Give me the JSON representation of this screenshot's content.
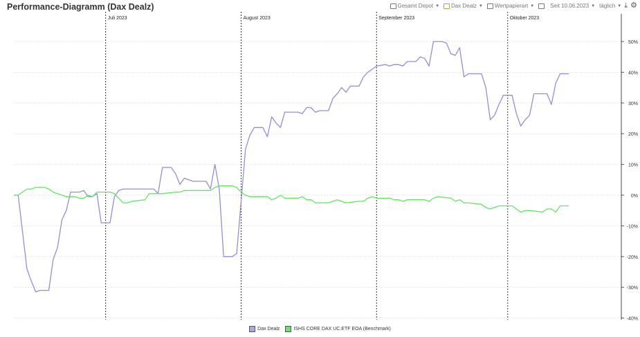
{
  "page": {
    "title": "Performance-Diagramm (Dax Dealz)"
  },
  "toolbar": {
    "depot_label": "Gesamt Depot",
    "portfolio_label": "Dax Dealz",
    "security_type_label": "Wertpapierart",
    "since_label": "Seit 10.06.2023",
    "interval_label": "täglich",
    "icons": [
      "calendar-icon",
      "download-icon",
      "gear-icon"
    ],
    "accent_color": "#e0952a"
  },
  "chart_data": {
    "type": "line",
    "title": "Performance-Diagramm (Dax Dealz)",
    "xlabel": "",
    "ylabel": "",
    "x_range": [
      "2023-06-10",
      "2023-10-27"
    ],
    "ylim": [
      -40,
      58
    ],
    "y_ticks": [
      50,
      40,
      30,
      20,
      10,
      0,
      -10,
      -20,
      -30,
      -40
    ],
    "y_tick_labels": [
      "50%",
      "40%",
      "30%",
      "20%",
      "10%",
      "0%",
      "-10%",
      "-20%",
      "-30%",
      "-40%"
    ],
    "y_axis_side": "right",
    "grid": true,
    "month_markers": [
      {
        "date": "2023-07-01",
        "label": "Juli 2023"
      },
      {
        "date": "2023-08-01",
        "label": "August 2023"
      },
      {
        "date": "2023-09-01",
        "label": "September 2023"
      },
      {
        "date": "2023-10-01",
        "label": "Oktober 2023"
      }
    ],
    "legend_position": "bottom-center",
    "series": [
      {
        "name": "Dax Dealz",
        "color": "#8f8fd6",
        "legend_fill": "#a9a9dc",
        "points": [
          [
            "2023-06-10",
            0
          ],
          [
            "2023-06-11",
            0
          ],
          [
            "2023-06-12",
            -12
          ],
          [
            "2023-06-13",
            -24
          ],
          [
            "2023-06-14",
            -28
          ],
          [
            "2023-06-15",
            -31.5
          ],
          [
            "2023-06-16",
            -31
          ],
          [
            "2023-06-17",
            -31
          ],
          [
            "2023-06-18",
            -31
          ],
          [
            "2023-06-19",
            -21
          ],
          [
            "2023-06-20",
            -17
          ],
          [
            "2023-06-21",
            -8
          ],
          [
            "2023-06-22",
            -5
          ],
          [
            "2023-06-23",
            1
          ],
          [
            "2023-06-24",
            1
          ],
          [
            "2023-06-25",
            1
          ],
          [
            "2023-06-26",
            1.5
          ],
          [
            "2023-06-27",
            -0.5
          ],
          [
            "2023-06-28",
            -0.5
          ],
          [
            "2023-06-29",
            0.5
          ],
          [
            "2023-06-30",
            -9
          ],
          [
            "2023-07-01",
            -9
          ],
          [
            "2023-07-02",
            -9
          ],
          [
            "2023-07-03",
            -0.5
          ],
          [
            "2023-07-04",
            1.5
          ],
          [
            "2023-07-05",
            2
          ],
          [
            "2023-07-07",
            2
          ],
          [
            "2023-07-10",
            2
          ],
          [
            "2023-07-11",
            2
          ],
          [
            "2023-07-12",
            2
          ],
          [
            "2023-07-13",
            0.5
          ],
          [
            "2023-07-14",
            9
          ],
          [
            "2023-07-15",
            9
          ],
          [
            "2023-07-16",
            9
          ],
          [
            "2023-07-17",
            7
          ],
          [
            "2023-07-18",
            3.5
          ],
          [
            "2023-07-19",
            5.5
          ],
          [
            "2023-07-20",
            5
          ],
          [
            "2023-07-21",
            4.5
          ],
          [
            "2023-07-24",
            4.5
          ],
          [
            "2023-07-25",
            2
          ],
          [
            "2023-07-26",
            10
          ],
          [
            "2023-07-27",
            2
          ],
          [
            "2023-07-28",
            -20
          ],
          [
            "2023-07-29",
            -20
          ],
          [
            "2023-07-30",
            -20
          ],
          [
            "2023-07-31",
            -19
          ],
          [
            "2023-08-01",
            -2
          ],
          [
            "2023-08-02",
            15
          ],
          [
            "2023-08-03",
            19.5
          ],
          [
            "2023-08-04",
            22
          ],
          [
            "2023-08-05",
            22
          ],
          [
            "2023-08-06",
            22
          ],
          [
            "2023-08-07",
            19
          ],
          [
            "2023-08-08",
            25.5
          ],
          [
            "2023-08-09",
            23.5
          ],
          [
            "2023-08-10",
            22
          ],
          [
            "2023-08-11",
            27
          ],
          [
            "2023-08-14",
            27
          ],
          [
            "2023-08-15",
            26.5
          ],
          [
            "2023-08-16",
            28.5
          ],
          [
            "2023-08-17",
            28.5
          ],
          [
            "2023-08-18",
            27
          ],
          [
            "2023-08-19",
            27.5
          ],
          [
            "2023-08-21",
            27.5
          ],
          [
            "2023-08-22",
            31.5
          ],
          [
            "2023-08-23",
            33
          ],
          [
            "2023-08-24",
            35
          ],
          [
            "2023-08-25",
            33.5
          ],
          [
            "2023-08-26",
            35.5
          ],
          [
            "2023-08-28",
            35.5
          ],
          [
            "2023-08-29",
            38.5
          ],
          [
            "2023-08-30",
            40
          ],
          [
            "2023-08-31",
            41
          ],
          [
            "2023-09-01",
            42
          ],
          [
            "2023-09-03",
            42.5
          ],
          [
            "2023-09-04",
            42
          ],
          [
            "2023-09-05",
            42.5
          ],
          [
            "2023-09-06",
            42.5
          ],
          [
            "2023-09-07",
            42
          ],
          [
            "2023-09-08",
            43.5
          ],
          [
            "2023-09-10",
            43.5
          ],
          [
            "2023-09-11",
            45
          ],
          [
            "2023-09-12",
            44.5
          ],
          [
            "2023-09-13",
            42
          ],
          [
            "2023-09-14",
            50
          ],
          [
            "2023-09-15",
            50
          ],
          [
            "2023-09-16",
            50
          ],
          [
            "2023-09-17",
            49.5
          ],
          [
            "2023-09-18",
            46
          ],
          [
            "2023-09-19",
            45.5
          ],
          [
            "2023-09-20",
            48
          ],
          [
            "2023-09-21",
            38.5
          ],
          [
            "2023-09-22",
            39.5
          ],
          [
            "2023-09-24",
            39.5
          ],
          [
            "2023-09-25",
            39.5
          ],
          [
            "2023-09-26",
            35
          ],
          [
            "2023-09-27",
            24.5
          ],
          [
            "2023-09-28",
            26
          ],
          [
            "2023-09-29",
            29.5
          ],
          [
            "2023-09-30",
            32.5
          ],
          [
            "2023-10-02",
            32.5
          ],
          [
            "2023-10-03",
            26.5
          ],
          [
            "2023-10-04",
            22.5
          ],
          [
            "2023-10-05",
            24.5
          ],
          [
            "2023-10-06",
            26
          ],
          [
            "2023-10-07",
            33
          ],
          [
            "2023-10-10",
            33
          ],
          [
            "2023-10-11",
            29.5
          ],
          [
            "2023-10-12",
            36.5
          ],
          [
            "2023-10-13",
            39.5
          ],
          [
            "2023-10-14",
            39.5
          ],
          [
            "2023-10-15",
            39.5
          ]
        ]
      },
      {
        "name": "ISHS CORE DAX UC.ETF EOA (Benchmark)",
        "color": "#5ee65e",
        "legend_fill": "#6ee06e",
        "points": [
          [
            "2023-06-10",
            0
          ],
          [
            "2023-06-11",
            0
          ],
          [
            "2023-06-12",
            1
          ],
          [
            "2023-06-13",
            2
          ],
          [
            "2023-06-14",
            2
          ],
          [
            "2023-06-15",
            2.5
          ],
          [
            "2023-06-16",
            2.5
          ],
          [
            "2023-06-17",
            2.5
          ],
          [
            "2023-06-18",
            2
          ],
          [
            "2023-06-19",
            1
          ],
          [
            "2023-06-20",
            0.5
          ],
          [
            "2023-06-21",
            0
          ],
          [
            "2023-06-22",
            -0.5
          ],
          [
            "2023-06-23",
            -0.5
          ],
          [
            "2023-06-24",
            -0.5
          ],
          [
            "2023-06-25",
            -1
          ],
          [
            "2023-06-26",
            -1
          ],
          [
            "2023-06-27",
            0
          ],
          [
            "2023-06-28",
            -0.5
          ],
          [
            "2023-06-29",
            1
          ],
          [
            "2023-06-30",
            1
          ],
          [
            "2023-07-01",
            1
          ],
          [
            "2023-07-02",
            1
          ],
          [
            "2023-07-03",
            0.5
          ],
          [
            "2023-07-04",
            -1
          ],
          [
            "2023-07-05",
            -2.5
          ],
          [
            "2023-07-06",
            -2.5
          ],
          [
            "2023-07-07",
            -2
          ],
          [
            "2023-07-10",
            -1.5
          ],
          [
            "2023-07-11",
            0.5
          ],
          [
            "2023-07-12",
            0.5
          ],
          [
            "2023-07-13",
            0.5
          ],
          [
            "2023-07-14",
            0.5
          ],
          [
            "2023-07-17",
            1
          ],
          [
            "2023-07-18",
            1
          ],
          [
            "2023-07-19",
            1.5
          ],
          [
            "2023-07-20",
            1.5
          ],
          [
            "2023-07-21",
            1.5
          ],
          [
            "2023-07-24",
            1.5
          ],
          [
            "2023-07-25",
            1.5
          ],
          [
            "2023-07-26",
            2.5
          ],
          [
            "2023-07-27",
            3
          ],
          [
            "2023-07-28",
            3
          ],
          [
            "2023-07-30",
            3
          ],
          [
            "2023-07-31",
            2.5
          ],
          [
            "2023-08-01",
            1
          ],
          [
            "2023-08-02",
            0
          ],
          [
            "2023-08-03",
            -0.5
          ],
          [
            "2023-08-04",
            -0.5
          ],
          [
            "2023-08-07",
            -0.5
          ],
          [
            "2023-08-08",
            -1.5
          ],
          [
            "2023-08-09",
            -1
          ],
          [
            "2023-08-10",
            0
          ],
          [
            "2023-08-11",
            -1
          ],
          [
            "2023-08-14",
            -1
          ],
          [
            "2023-08-15",
            -0.5
          ],
          [
            "2023-08-16",
            -1.5
          ],
          [
            "2023-08-17",
            -1.5
          ],
          [
            "2023-08-18",
            -2.5
          ],
          [
            "2023-08-21",
            -2.5
          ],
          [
            "2023-08-22",
            -2
          ],
          [
            "2023-08-23",
            -1.5
          ],
          [
            "2023-08-24",
            -2
          ],
          [
            "2023-08-25",
            -2.5
          ],
          [
            "2023-08-28",
            -2
          ],
          [
            "2023-08-29",
            -2
          ],
          [
            "2023-08-30",
            -1
          ],
          [
            "2023-08-31",
            -0.5
          ],
          [
            "2023-09-01",
            -1
          ],
          [
            "2023-09-04",
            -1
          ],
          [
            "2023-09-05",
            -1.5
          ],
          [
            "2023-09-06",
            -1.5
          ],
          [
            "2023-09-07",
            -2
          ],
          [
            "2023-09-08",
            -1.5
          ],
          [
            "2023-09-11",
            -1.5
          ],
          [
            "2023-09-12",
            -1.5
          ],
          [
            "2023-09-13",
            -2
          ],
          [
            "2023-09-14",
            -1
          ],
          [
            "2023-09-15",
            -0.5
          ],
          [
            "2023-09-18",
            -1
          ],
          [
            "2023-09-19",
            -2
          ],
          [
            "2023-09-20",
            -1.5
          ],
          [
            "2023-09-21",
            -2.5
          ],
          [
            "2023-09-22",
            -2.5
          ],
          [
            "2023-09-25",
            -3
          ],
          [
            "2023-09-26",
            -4
          ],
          [
            "2023-09-27",
            -4.5
          ],
          [
            "2023-09-28",
            -4
          ],
          [
            "2023-09-29",
            -3.5
          ],
          [
            "2023-10-02",
            -3.5
          ],
          [
            "2023-10-03",
            -4.5
          ],
          [
            "2023-10-04",
            -5.5
          ],
          [
            "2023-10-05",
            -5
          ],
          [
            "2023-10-06",
            -5
          ],
          [
            "2023-10-09",
            -5.5
          ],
          [
            "2023-10-10",
            -4.5
          ],
          [
            "2023-10-11",
            -4.5
          ],
          [
            "2023-10-12",
            -5.5
          ],
          [
            "2023-10-13",
            -3.5
          ],
          [
            "2023-10-15",
            -3.5
          ]
        ]
      }
    ]
  }
}
